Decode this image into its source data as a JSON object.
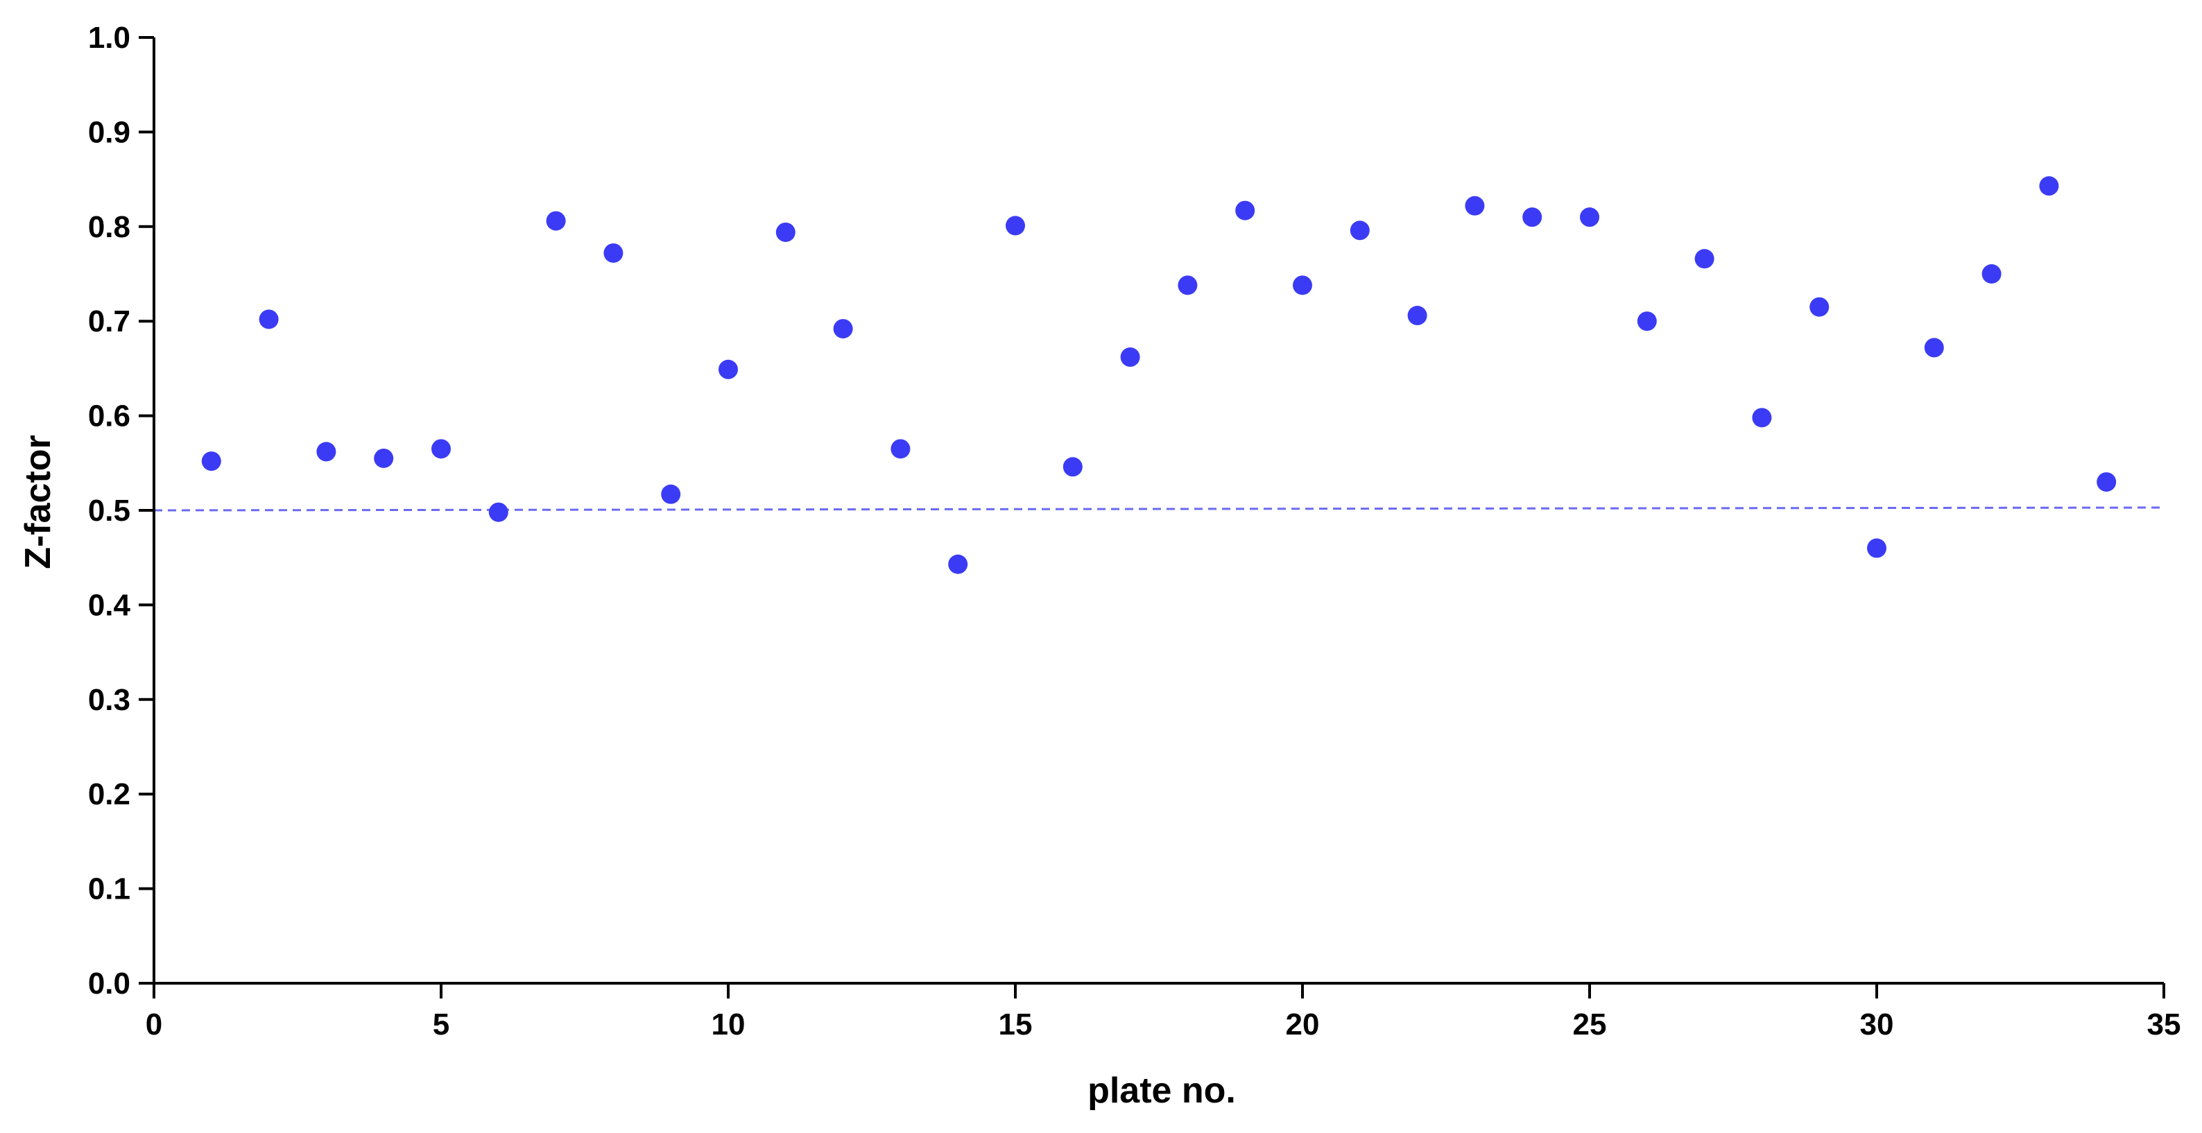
{
  "chart_data": {
    "type": "scatter",
    "xlabel": "plate no.",
    "ylabel": "Z-factor",
    "xlim": [
      0,
      35
    ],
    "ylim": [
      0.0,
      1.0
    ],
    "x_ticks": [
      "0",
      "5",
      "10",
      "15",
      "20",
      "25",
      "30",
      "35"
    ],
    "y_ticks": [
      "0.0",
      "0.1",
      "0.2",
      "0.3",
      "0.4",
      "0.5",
      "0.6",
      "0.7",
      "0.8",
      "0.9",
      "1.0"
    ],
    "grid": false,
    "legend": "none",
    "marker_color": "#3b3bf5",
    "reference_line": {
      "y": 0.5,
      "style": "dashed",
      "color": "#5a5af0"
    },
    "series": [
      {
        "x": [
          1,
          2,
          3,
          4,
          5,
          6,
          7,
          8,
          9,
          10,
          11,
          12,
          13,
          14,
          15,
          16,
          17,
          18,
          19,
          20,
          21,
          22,
          23,
          24,
          25,
          26,
          27,
          28,
          29,
          30,
          31,
          32,
          33,
          34
        ],
        "y": [
          0.552,
          0.702,
          0.562,
          0.555,
          0.565,
          0.498,
          0.806,
          0.772,
          0.517,
          0.649,
          0.794,
          0.692,
          0.565,
          0.443,
          0.801,
          0.546,
          0.662,
          0.738,
          0.817,
          0.738,
          0.796,
          0.706,
          0.822,
          0.81,
          0.81,
          0.7,
          0.766,
          0.598,
          0.715,
          0.46,
          0.672,
          0.75,
          0.843,
          0.53
        ]
      }
    ]
  }
}
